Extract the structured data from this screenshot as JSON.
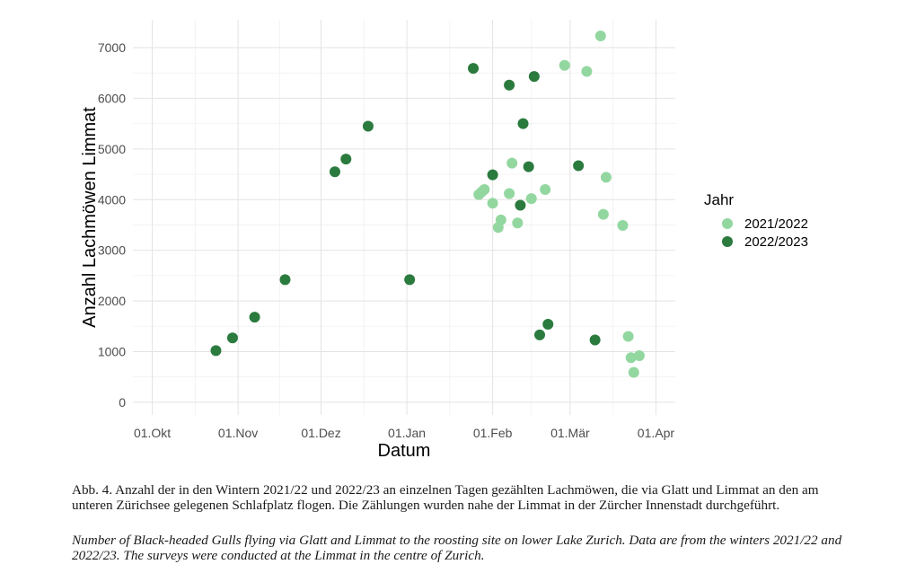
{
  "chart_data": {
    "type": "scatter",
    "title": "",
    "xlabel": "Datum",
    "ylabel": "Anzahl Lachmöwen Limmat",
    "x_ticks": [
      {
        "date": "2022-10-01",
        "label": "01.Okt"
      },
      {
        "date": "2022-11-01",
        "label": "01.Nov"
      },
      {
        "date": "2022-12-01",
        "label": "01.Dez"
      },
      {
        "date": "2023-01-01",
        "label": "01.Jan"
      },
      {
        "date": "2023-02-01",
        "label": "01.Feb"
      },
      {
        "date": "2023-03-01",
        "label": "01.Mär"
      },
      {
        "date": "2023-04-01",
        "label": "01.Apr"
      }
    ],
    "xlim": [
      "2022-09-24",
      "2023-04-08"
    ],
    "y_ticks": [
      0,
      1000,
      2000,
      3000,
      4000,
      5000,
      6000,
      7000
    ],
    "ylim": [
      -250,
      7550
    ],
    "grid": true,
    "legend": {
      "title": "Jahr",
      "position": "right"
    },
    "series": [
      {
        "name": "2021/2022",
        "color": "#93d7a0",
        "points": [
          {
            "x": "2023-01-27",
            "y": 4100
          },
          {
            "x": "2023-01-28",
            "y": 4150
          },
          {
            "x": "2023-01-29",
            "y": 4200
          },
          {
            "x": "2023-02-01",
            "y": 3930
          },
          {
            "x": "2023-02-03",
            "y": 3450
          },
          {
            "x": "2023-02-04",
            "y": 3600
          },
          {
            "x": "2023-02-07",
            "y": 4120
          },
          {
            "x": "2023-02-08",
            "y": 4720
          },
          {
            "x": "2023-02-10",
            "y": 3540
          },
          {
            "x": "2023-02-15",
            "y": 4020
          },
          {
            "x": "2023-02-20",
            "y": 4200
          },
          {
            "x": "2023-02-27",
            "y": 6650
          },
          {
            "x": "2023-03-07",
            "y": 6530
          },
          {
            "x": "2023-03-12",
            "y": 7230
          },
          {
            "x": "2023-03-13",
            "y": 3710
          },
          {
            "x": "2023-03-14",
            "y": 4440
          },
          {
            "x": "2023-03-20",
            "y": 3490
          },
          {
            "x": "2023-03-22",
            "y": 1300
          },
          {
            "x": "2023-03-23",
            "y": 880
          },
          {
            "x": "2023-03-24",
            "y": 590
          },
          {
            "x": "2023-03-26",
            "y": 920
          }
        ]
      },
      {
        "name": "2022/2023",
        "color": "#2b7a3e",
        "points": [
          {
            "x": "2022-10-24",
            "y": 1020
          },
          {
            "x": "2022-10-30",
            "y": 1270
          },
          {
            "x": "2022-11-07",
            "y": 1680
          },
          {
            "x": "2022-11-18",
            "y": 2420
          },
          {
            "x": "2022-12-06",
            "y": 4550
          },
          {
            "x": "2022-12-10",
            "y": 4800
          },
          {
            "x": "2022-12-18",
            "y": 5450
          },
          {
            "x": "2023-01-02",
            "y": 2420
          },
          {
            "x": "2023-01-25",
            "y": 6590
          },
          {
            "x": "2023-02-01",
            "y": 4490
          },
          {
            "x": "2023-02-07",
            "y": 6260
          },
          {
            "x": "2023-02-11",
            "y": 3890
          },
          {
            "x": "2023-02-12",
            "y": 5500
          },
          {
            "x": "2023-02-14",
            "y": 4650
          },
          {
            "x": "2023-02-16",
            "y": 6430
          },
          {
            "x": "2023-02-18",
            "y": 1330
          },
          {
            "x": "2023-02-21",
            "y": 1540
          },
          {
            "x": "2023-03-04",
            "y": 4670
          },
          {
            "x": "2023-03-10",
            "y": 1230
          }
        ]
      }
    ]
  },
  "caption": {
    "german": "Abb. 4. Anzahl der in den Wintern 2021/22 und 2022/23 an einzelnen Tagen gezählten Lachmöwen, die via Glatt und Limmat an den am unteren Zürichsee gelegenen Schlafplatz flogen. Die Zählungen wurden nahe der Limmat in der Zürcher Innenstadt durchgeführt.",
    "english": "Number of Black-headed Gulls flying via Glatt and Limmat to the roosting site on lower Lake Zurich. Data are from the winters 2021/22 and 2022/23. The surveys were conducted at the Limmat in the centre of Zurich."
  }
}
